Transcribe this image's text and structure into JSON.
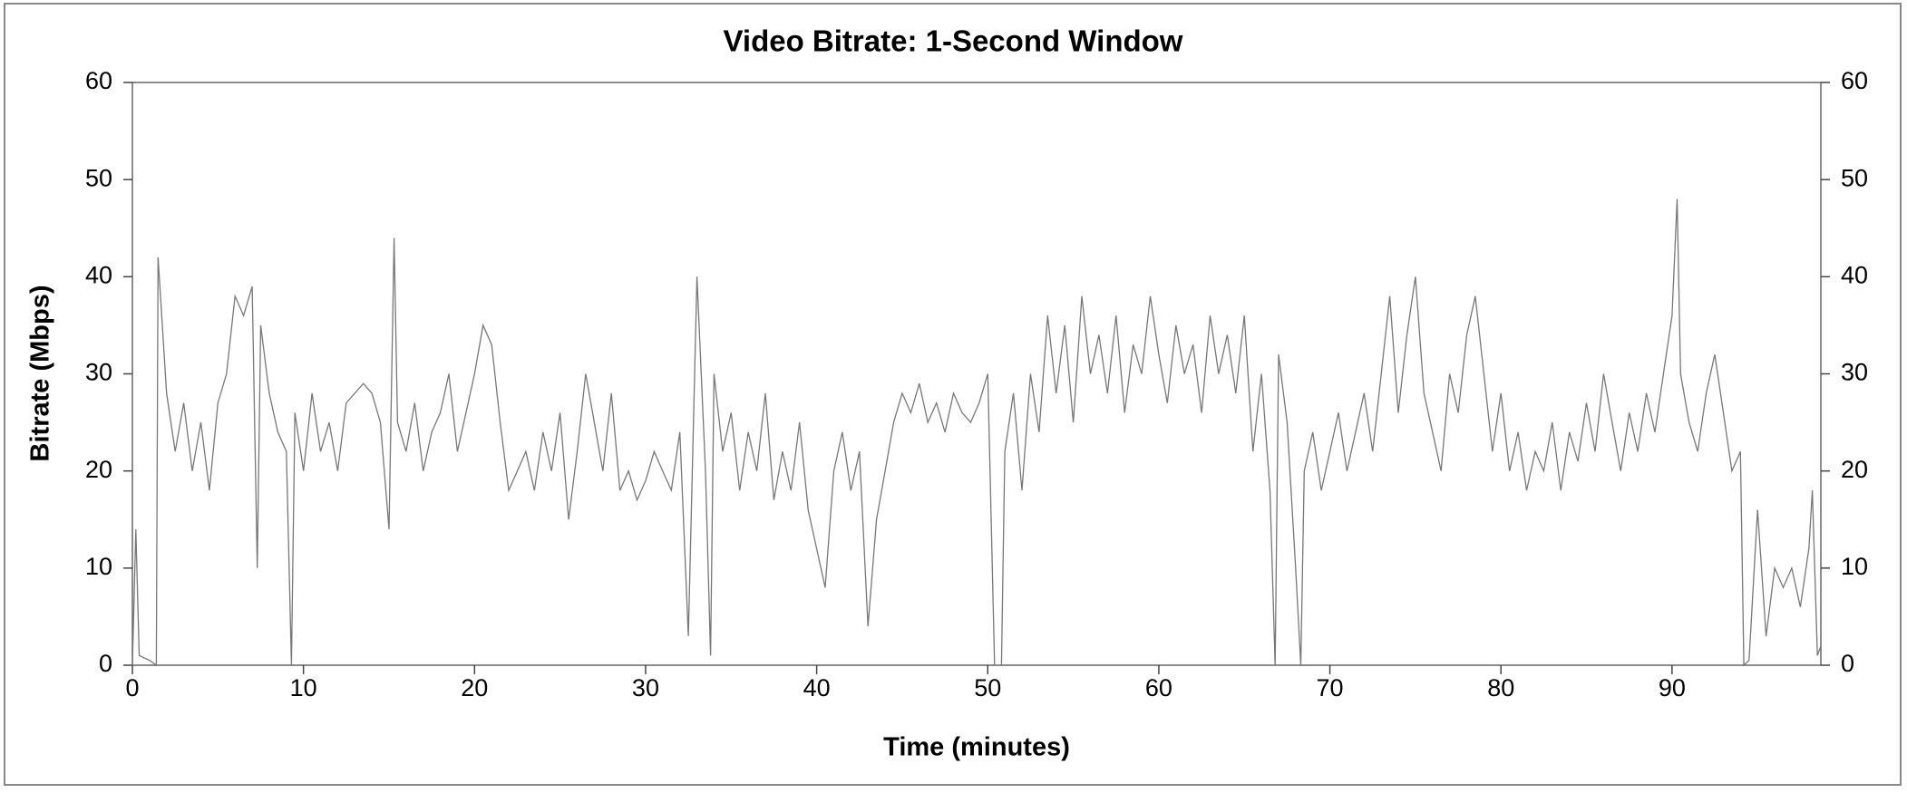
{
  "chart_data": {
    "type": "line",
    "title": "Video Bitrate: 1-Second Window",
    "x_label": "Time (minutes)",
    "y_label": "Bitrate (Mbps)",
    "x": [
      0,
      0.2,
      0.4,
      1,
      1.4,
      1.5,
      2,
      2.5,
      3,
      3.5,
      4,
      4.5,
      5,
      5.5,
      6,
      6.5,
      7,
      7.3,
      7.5,
      8,
      8.5,
      9,
      9.3,
      9.5,
      10,
      10.5,
      11,
      11.5,
      12,
      12.5,
      13,
      13.5,
      14,
      14.5,
      15,
      15.3,
      15.5,
      16,
      16.5,
      17,
      17.5,
      18,
      18.5,
      19,
      19.5,
      20,
      20.5,
      21,
      21.5,
      22,
      22.5,
      23,
      23.5,
      24,
      24.5,
      25,
      25.5,
      26,
      26.5,
      27,
      27.5,
      28,
      28.5,
      29,
      29.5,
      30,
      30.5,
      31,
      31.5,
      32,
      32.5,
      33,
      33.5,
      33.8,
      34,
      34.5,
      35,
      35.5,
      36,
      36.5,
      37,
      37.5,
      38,
      38.5,
      39,
      39.5,
      40,
      40.5,
      41,
      41.5,
      42,
      42.5,
      43,
      43.5,
      44,
      44.5,
      45,
      45.5,
      46,
      46.5,
      47,
      47.5,
      48,
      48.5,
      49,
      49.5,
      50,
      50.4,
      50.8,
      51,
      51.5,
      52,
      52.5,
      53,
      53.5,
      54,
      54.5,
      55,
      55.5,
      56,
      56.5,
      57,
      57.5,
      58,
      58.5,
      59,
      59.5,
      60,
      60.5,
      61,
      61.5,
      62,
      62.5,
      63,
      63.5,
      64,
      64.5,
      65,
      65.5,
      66,
      66.5,
      66.8,
      67,
      67.5,
      68,
      68.3,
      68.5,
      69,
      69.5,
      70,
      70.5,
      71,
      71.5,
      72,
      72.5,
      73,
      73.5,
      74,
      74.5,
      75,
      75.5,
      76,
      76.5,
      77,
      77.5,
      78,
      78.5,
      79,
      79.5,
      80,
      80.5,
      81,
      81.5,
      82,
      82.5,
      83,
      83.5,
      84,
      84.5,
      85,
      85.5,
      86,
      86.5,
      87,
      87.5,
      88,
      88.5,
      89,
      89.5,
      90,
      90.3,
      90.5,
      91,
      91.5,
      92,
      92.5,
      93,
      93.5,
      94,
      94.2,
      94.5,
      95,
      95.5,
      96,
      96.5,
      97,
      97.5,
      98,
      98.2,
      98.5,
      98.7
    ],
    "values": [
      0,
      14,
      1,
      0.5,
      0,
      42,
      28,
      22,
      27,
      20,
      25,
      18,
      27,
      30,
      38,
      36,
      39,
      10,
      35,
      28,
      24,
      22,
      0,
      26,
      20,
      28,
      22,
      25,
      20,
      27,
      28,
      29,
      28,
      25,
      14,
      44,
      25,
      22,
      27,
      20,
      24,
      26,
      30,
      22,
      26,
      30,
      35,
      33,
      25,
      18,
      20,
      22,
      18,
      24,
      20,
      26,
      15,
      22,
      30,
      25,
      20,
      28,
      18,
      20,
      17,
      19,
      22,
      20,
      18,
      24,
      3,
      40,
      20,
      1,
      30,
      22,
      26,
      18,
      24,
      20,
      28,
      17,
      22,
      18,
      25,
      16,
      12,
      8,
      20,
      24,
      18,
      22,
      4,
      15,
      20,
      25,
      28,
      26,
      29,
      25,
      27,
      24,
      28,
      26,
      25,
      27,
      30,
      0,
      0,
      22,
      28,
      18,
      30,
      24,
      36,
      28,
      35,
      25,
      38,
      30,
      34,
      28,
      36,
      26,
      33,
      30,
      38,
      32,
      27,
      35,
      30,
      33,
      26,
      36,
      30,
      34,
      28,
      36,
      22,
      30,
      18,
      0,
      32,
      25,
      10,
      0,
      20,
      24,
      18,
      22,
      26,
      20,
      24,
      28,
      22,
      30,
      38,
      26,
      34,
      40,
      28,
      24,
      20,
      30,
      26,
      34,
      38,
      30,
      22,
      28,
      20,
      24,
      18,
      22,
      20,
      25,
      18,
      24,
      21,
      27,
      22,
      30,
      25,
      20,
      26,
      22,
      28,
      24,
      30,
      36,
      48,
      30,
      25,
      22,
      28,
      32,
      26,
      20,
      22,
      0,
      0.5,
      16,
      3,
      10,
      8,
      10,
      6,
      12,
      18,
      1,
      2
    ],
    "color": "#777777",
    "xlim": [
      0,
      98.7
    ],
    "xticks": [
      0,
      10,
      20,
      30,
      40,
      50,
      60,
      70,
      80,
      90
    ],
    "ylim": [
      0,
      60
    ],
    "yticks": [
      0,
      10,
      20,
      30,
      40,
      50,
      60
    ],
    "y2lim": [
      0,
      60
    ],
    "y2ticks": [
      0,
      10,
      20,
      30,
      40,
      50,
      60
    ]
  }
}
